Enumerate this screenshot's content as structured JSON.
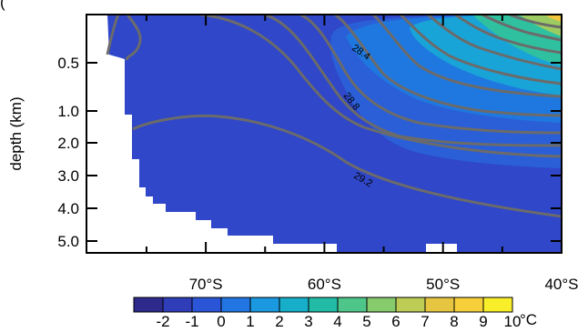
{
  "chart_data": {
    "type": "contour",
    "panel_label": "(",
    "ylabel": "depth (km)",
    "x_ticks": [
      "70°S",
      "60°S",
      "50°S",
      "40°S"
    ],
    "y_ticks": [
      "0.5",
      "1.0",
      "2.0",
      "3.0",
      "4.0",
      "5.0"
    ],
    "colorbar": {
      "labels": [
        "-2",
        "-1",
        "0",
        "1",
        "2",
        "3",
        "4",
        "5",
        "6",
        "7",
        "8",
        "9",
        "10"
      ],
      "unit": "°C",
      "colors": [
        "#2d2a8c",
        "#2f3db8",
        "#2a55d6",
        "#2276e3",
        "#1a98e0",
        "#16aec9",
        "#22bba6",
        "#4fc689",
        "#86cc6c",
        "#bccc55",
        "#e6c640",
        "#f7cf3a",
        "#f9ee2a"
      ]
    },
    "contour_labels": [
      "28.4",
      "28.8",
      "29.2"
    ],
    "fill_colors": {
      "background_fill": "#2f47c8",
      "mid_fill": "#2a5fd7",
      "core_fill": "#1f78e0",
      "warm_fill_1": "#19a4d7",
      "warm_fill_2": "#2fc0a0",
      "warm_fill_3": "#9ccc61",
      "warm_fill_4": "#f2c63f",
      "contour_line": "#6b6b6b"
    }
  }
}
